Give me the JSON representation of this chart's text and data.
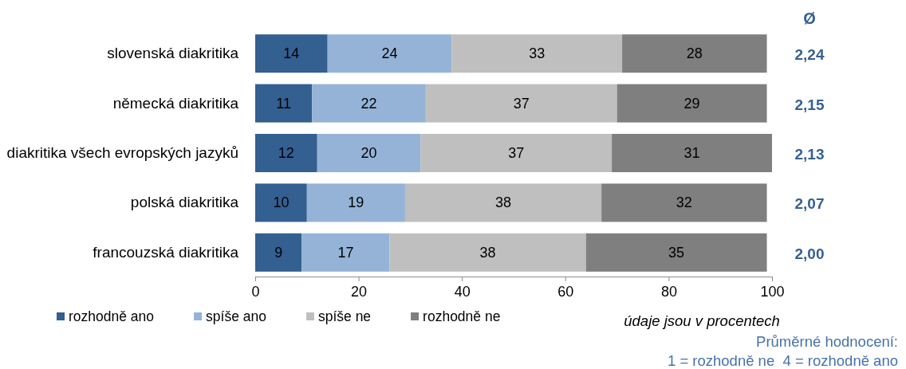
{
  "chart_data": {
    "type": "bar",
    "orientation": "horizontal",
    "stacked": true,
    "categories": [
      "slovenská diakritika",
      "německá diakritika",
      "diakritika všech evropských jazyků",
      "polská diakritika",
      "francouzská diakritika"
    ],
    "series": [
      {
        "name": "rozhodně ano",
        "color": "#335f91",
        "values": [
          14,
          11,
          12,
          10,
          9
        ]
      },
      {
        "name": "spíše ano",
        "color": "#95b3d7",
        "values": [
          24,
          22,
          20,
          19,
          17
        ]
      },
      {
        "name": "spíše ne",
        "color": "#bfbfbf",
        "values": [
          33,
          37,
          37,
          38,
          38
        ]
      },
      {
        "name": "rozhodně ne",
        "color": "#7f7f7f",
        "values": [
          28,
          29,
          31,
          32,
          35
        ]
      }
    ],
    "xlim": [
      0,
      100
    ],
    "xticks": [
      0,
      20,
      40,
      60,
      80,
      100
    ],
    "data_labels": true,
    "legend": "bottom",
    "annotations": [
      "Ø",
      "2,24",
      "2,15",
      "2,13",
      "2,07",
      "2,00",
      "údaje jsou v procentech",
      "Průměrné hodnocení:",
      "1 = rozhodně ne  4 = rozhodně ano"
    ]
  }
}
